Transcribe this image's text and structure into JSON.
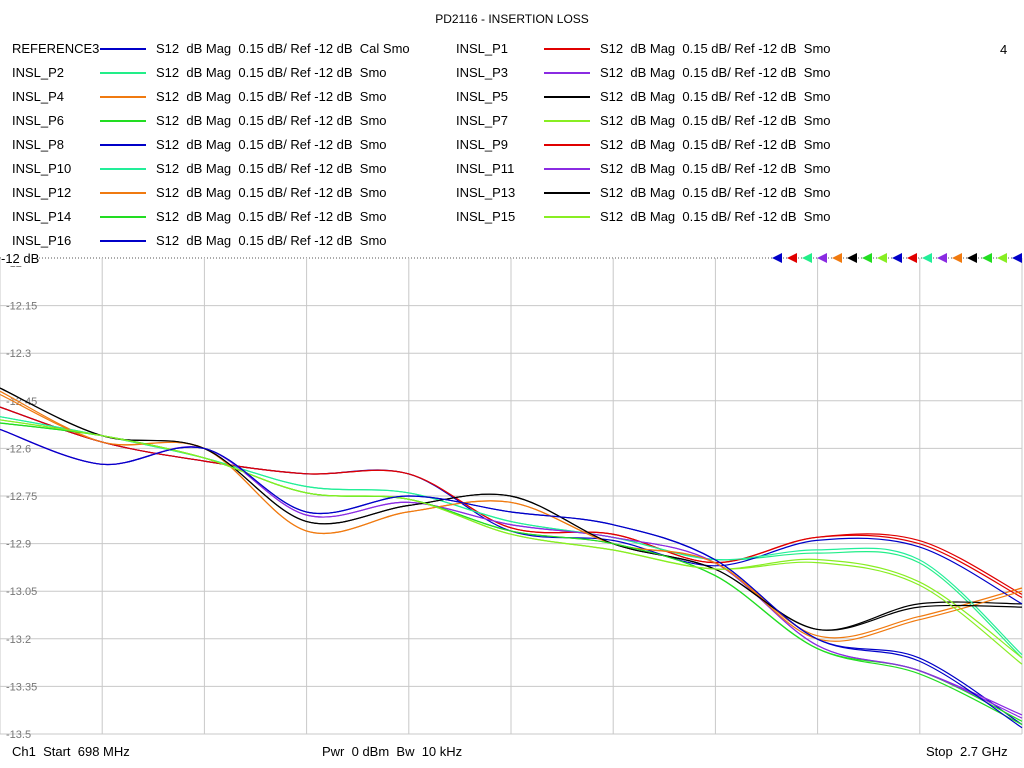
{
  "title": "PD2116 - INSERTION LOSS",
  "channel_number": "4",
  "ref_label": "-12 dB",
  "footer": {
    "left": "Ch1  Start  698 MHz",
    "middle": "Pwr  0 dBm  Bw  10 kHz",
    "right": "Stop  2.7 GHz"
  },
  "legend": [
    {
      "name": "REFERENCE3",
      "desc": "S12  dB Mag  0.15 dB/ Ref -12 dB  Cal Smo",
      "color": "#0000c8"
    },
    {
      "name": "INSL_P1",
      "desc": "S12  dB Mag  0.15 dB/ Ref -12 dB  Smo",
      "color": "#e00000"
    },
    {
      "name": "INSL_P2",
      "desc": "S12  dB Mag  0.15 dB/ Ref -12 dB  Smo",
      "color": "#22ee88"
    },
    {
      "name": "INSL_P3",
      "desc": "S12  dB Mag  0.15 dB/ Ref -12 dB  Smo",
      "color": "#8a2be2"
    },
    {
      "name": "INSL_P4",
      "desc": "S12  dB Mag  0.15 dB/ Ref -12 dB  Smo",
      "color": "#f07a10"
    },
    {
      "name": "INSL_P5",
      "desc": "S12  dB Mag  0.15 dB/ Ref -12 dB  Smo",
      "color": "#000000"
    },
    {
      "name": "INSL_P6",
      "desc": "S12  dB Mag  0.15 dB/ Ref -12 dB  Smo",
      "color": "#22dd22"
    },
    {
      "name": "INSL_P7",
      "desc": "S12  dB Mag  0.15 dB/ Ref -12 dB  Smo",
      "color": "#88ee22"
    },
    {
      "name": "INSL_P8",
      "desc": "S12  dB Mag  0.15 dB/ Ref -12 dB  Smo",
      "color": "#0000c8"
    },
    {
      "name": "INSL_P9",
      "desc": "S12  dB Mag  0.15 dB/ Ref -12 dB  Smo",
      "color": "#e00000"
    },
    {
      "name": "INSL_P10",
      "desc": "S12  dB Mag  0.15 dB/ Ref -12 dB  Smo",
      "color": "#22ee99"
    },
    {
      "name": "INSL_P11",
      "desc": "S12  dB Mag  0.15 dB/ Ref -12 dB  Smo",
      "color": "#8a2be2"
    },
    {
      "name": "INSL_P12",
      "desc": "S12  dB Mag  0.15 dB/ Ref -12 dB  Smo",
      "color": "#f07a10"
    },
    {
      "name": "INSL_P13",
      "desc": "S12  dB Mag  0.15 dB/ Ref -12 dB  Smo",
      "color": "#000000"
    },
    {
      "name": "INSL_P14",
      "desc": "S12  dB Mag  0.15 dB/ Ref -12 dB  Smo",
      "color": "#22dd22"
    },
    {
      "name": "INSL_P15",
      "desc": "S12  dB Mag  0.15 dB/ Ref -12 dB  Smo",
      "color": "#88ee22"
    },
    {
      "name": "INSL_P16",
      "desc": "S12  dB Mag  0.15 dB/ Ref -12 dB  Smo",
      "color": "#0000c8"
    }
  ],
  "chart_data": {
    "type": "line",
    "title": "PD2116 - INSERTION LOSS",
    "x_range_mhz": [
      698,
      2700
    ],
    "ylim": [
      -13.5,
      -12.0
    ],
    "y_ticks": [
      "-12",
      "-12.15",
      "-12.3",
      "-12.45",
      "-12.6",
      "-12.75",
      "-12.9",
      "-13.05",
      "-13.2",
      "-13.35",
      "-13.5"
    ],
    "y_tick_values": [
      -12,
      -12.15,
      -12.3,
      -12.45,
      -12.6,
      -12.75,
      -12.9,
      -13.05,
      -13.2,
      -13.35,
      -13.5
    ],
    "x_divisions": 10,
    "grid": true,
    "x": [
      698,
      898,
      1098,
      1298,
      1498,
      1698,
      1898,
      2098,
      2298,
      2498,
      2700
    ],
    "series": [
      {
        "name": "REFERENCE3",
        "color": "#0000c8",
        "values": [
          -12.54,
          -12.65,
          -12.6,
          -12.8,
          -12.75,
          -12.8,
          -12.84,
          -12.95,
          -13.2,
          -13.26,
          -13.47
        ]
      },
      {
        "name": "INSL_P1",
        "color": "#e00000",
        "values": [
          -12.47,
          -12.58,
          -12.64,
          -12.68,
          -12.68,
          -12.85,
          -12.87,
          -12.96,
          -12.88,
          -12.89,
          -13.06
        ]
      },
      {
        "name": "INSL_P2",
        "color": "#22ee88",
        "values": [
          -12.5,
          -12.56,
          -12.63,
          -12.72,
          -12.74,
          -12.83,
          -12.88,
          -12.95,
          -12.93,
          -12.96,
          -13.26
        ]
      },
      {
        "name": "INSL_P3",
        "color": "#8a2be2",
        "values": [
          -12.54,
          -12.65,
          -12.6,
          -12.81,
          -12.77,
          -12.84,
          -12.88,
          -12.96,
          -13.22,
          -13.3,
          -13.44
        ]
      },
      {
        "name": "INSL_P4",
        "color": "#f07a10",
        "values": [
          -12.42,
          -12.58,
          -12.6,
          -12.86,
          -12.8,
          -12.77,
          -12.9,
          -12.96,
          -13.19,
          -13.13,
          -13.04
        ]
      },
      {
        "name": "INSL_P5",
        "color": "#000000",
        "values": [
          -12.41,
          -12.56,
          -12.6,
          -12.83,
          -12.78,
          -12.75,
          -12.9,
          -12.98,
          -13.17,
          -13.09,
          -13.09
        ]
      },
      {
        "name": "INSL_P6",
        "color": "#22dd22",
        "values": [
          -12.52,
          -12.56,
          -12.63,
          -12.74,
          -12.76,
          -12.86,
          -12.9,
          -13.0,
          -13.23,
          -13.3,
          -13.46
        ]
      },
      {
        "name": "INSL_P7",
        "color": "#88ee22",
        "values": [
          -12.51,
          -12.56,
          -12.63,
          -12.74,
          -12.76,
          -12.87,
          -12.92,
          -12.98,
          -12.95,
          -13.02,
          -13.26
        ]
      },
      {
        "name": "INSL_P8",
        "color": "#0000c8",
        "values": [
          -12.47,
          -12.58,
          -12.64,
          -12.68,
          -12.68,
          -12.86,
          -12.89,
          -12.97,
          -12.89,
          -12.91,
          -13.09
        ]
      },
      {
        "name": "INSL_P9",
        "color": "#e00000",
        "values": [
          -12.47,
          -12.58,
          -12.64,
          -12.68,
          -12.68,
          -12.85,
          -12.87,
          -12.96,
          -12.88,
          -12.9,
          -13.07
        ]
      },
      {
        "name": "INSL_P10",
        "color": "#22ee99",
        "values": [
          -12.5,
          -12.56,
          -12.63,
          -12.72,
          -12.74,
          -12.83,
          -12.88,
          -12.95,
          -12.92,
          -12.95,
          -13.25
        ]
      },
      {
        "name": "INSL_P11",
        "color": "#8a2be2",
        "values": [
          -12.54,
          -12.65,
          -12.6,
          -12.81,
          -12.77,
          -12.84,
          -12.88,
          -12.96,
          -13.22,
          -13.3,
          -13.45
        ]
      },
      {
        "name": "INSL_P12",
        "color": "#f07a10",
        "values": [
          -12.43,
          -12.58,
          -12.6,
          -12.86,
          -12.8,
          -12.77,
          -12.9,
          -12.96,
          -13.2,
          -13.14,
          -13.05
        ]
      },
      {
        "name": "INSL_P13",
        "color": "#000000",
        "values": [
          -12.41,
          -12.56,
          -12.6,
          -12.83,
          -12.78,
          -12.75,
          -12.9,
          -12.98,
          -13.17,
          -13.1,
          -13.1
        ]
      },
      {
        "name": "INSL_P14",
        "color": "#22dd22",
        "values": [
          -12.52,
          -12.56,
          -12.63,
          -12.74,
          -12.76,
          -12.86,
          -12.9,
          -13.0,
          -13.23,
          -13.31,
          -13.47
        ]
      },
      {
        "name": "INSL_P15",
        "color": "#88ee22",
        "values": [
          -12.51,
          -12.56,
          -12.63,
          -12.74,
          -12.76,
          -12.87,
          -12.92,
          -12.98,
          -12.96,
          -13.03,
          -13.28
        ]
      },
      {
        "name": "INSL_P16",
        "color": "#0000c8",
        "values": [
          -12.54,
          -12.65,
          -12.6,
          -12.8,
          -12.75,
          -12.8,
          -12.84,
          -12.95,
          -13.2,
          -13.27,
          -13.48
        ]
      }
    ]
  }
}
